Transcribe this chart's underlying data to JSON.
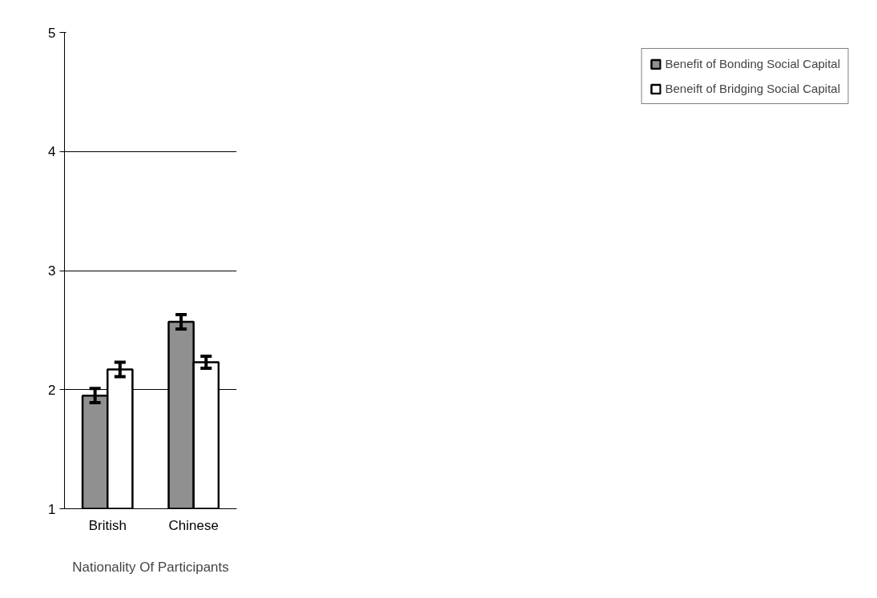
{
  "chart_data": {
    "type": "bar",
    "xlabel": "Nationality Of Participants",
    "categories": [
      "British",
      "Chinese"
    ],
    "series": [
      {
        "name": "Benefit of Bonding Social Capital",
        "color": "#909090",
        "values": [
          1.95,
          2.57
        ],
        "errors": [
          0.06,
          0.06
        ]
      },
      {
        "name": "Beneift of Bridging Social Capital",
        "color": "#ffffff",
        "values": [
          2.17,
          2.23
        ],
        "errors": [
          0.06,
          0.05
        ]
      }
    ],
    "ylim": [
      1,
      5
    ],
    "yticks": [
      1,
      2,
      3,
      4,
      5
    ],
    "grid": "y",
    "legend": "right"
  }
}
